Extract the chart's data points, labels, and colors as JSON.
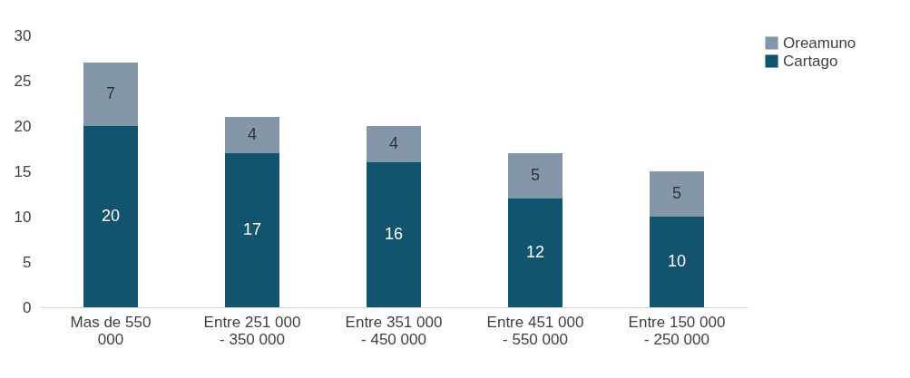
{
  "chart_data": {
    "type": "bar",
    "stacked": true,
    "categories": [
      "Mas de 550 000",
      "Entre 251 000 - 350 000",
      "Entre 351 000 - 450 000",
      "Entre 451 000 - 550 000",
      "Entre 150 000 - 250 000"
    ],
    "series": [
      {
        "name": "Cartago",
        "color": "#12536e",
        "values": [
          20,
          17,
          16,
          12,
          10
        ]
      },
      {
        "name": "Oreamuno",
        "color": "#8497a8",
        "values": [
          7,
          4,
          4,
          5,
          5
        ]
      }
    ],
    "ylim": [
      0,
      30
    ],
    "yticks": [
      0,
      5,
      10,
      15,
      20,
      25,
      30
    ],
    "data_labels": true,
    "legend": "right",
    "grid": false
  }
}
